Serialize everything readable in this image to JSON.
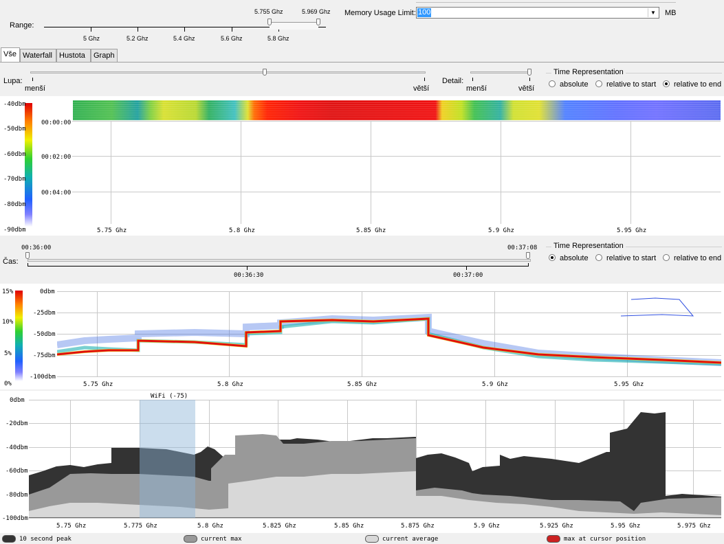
{
  "range": {
    "label": "Range:",
    "ticks": [
      "5 Ghz",
      "5.2 Ghz",
      "5.4 Ghz",
      "5.6 Ghz",
      "5.8 Ghz"
    ],
    "sel_low": "5.755 Ghz",
    "sel_high": "5.969 Ghz"
  },
  "memory": {
    "label": "Memory Usage Limit:",
    "value": "100",
    "unit": "MB"
  },
  "tabs": [
    {
      "label": "Vše",
      "active": true
    },
    {
      "label": "Waterfall",
      "active": false
    },
    {
      "label": "Hustota",
      "active": false
    },
    {
      "label": "Graph",
      "active": false
    }
  ],
  "zoom": {
    "lupa_label": "Lupa:",
    "lupa_min": "menší",
    "lupa_max": "větší",
    "detail_label": "Detail:",
    "detail_min": "menší",
    "detail_max": "větší"
  },
  "time_rep_top": {
    "title": "Time Representation",
    "options": [
      "absolute",
      "relative to start",
      "relative to end"
    ],
    "selected": 2
  },
  "waterfall": {
    "scale": [
      "-40dbm",
      "-50dbm",
      "-60dbm",
      "-70dbm",
      "-80dbm",
      "-90dbm"
    ],
    "times": [
      "00:00:00",
      "00:02:00",
      "00:04:00"
    ],
    "freqs": [
      "5.75 Ghz",
      "5.8 Ghz",
      "5.85 Ghz",
      "5.9 Ghz",
      "5.95 Ghz"
    ]
  },
  "cas": {
    "label": "Čas:",
    "start": "00:36:00",
    "end": "00:37:08",
    "ticks": [
      "00:36:30",
      "00:37:00"
    ]
  },
  "time_rep_mid": {
    "title": "Time Representation",
    "options": [
      "absolute",
      "relative to start",
      "relative to end"
    ],
    "selected": 0
  },
  "density": {
    "scale": [
      "15%",
      "10%",
      "5%",
      "0%"
    ],
    "dbm": [
      "0dbm",
      "-25dbm",
      "-50dbm",
      "-75dbm",
      "-100dbm"
    ],
    "freqs": [
      "5.75 Ghz",
      "5.8 Ghz",
      "5.85 Ghz",
      "5.9 Ghz",
      "5.95 Ghz"
    ]
  },
  "graph": {
    "dbm": [
      "0dbm",
      "-20dbm",
      "-40dbm",
      "-60dbm",
      "-80dbm",
      "-100dbm"
    ],
    "freqs": [
      "5.75 Ghz",
      "5.775 Ghz",
      "5.8 Ghz",
      "5.825 Ghz",
      "5.85 Ghz",
      "5.875 Ghz",
      "5.9 Ghz",
      "5.925 Ghz",
      "5.95 Ghz",
      "5.975 Ghz"
    ],
    "wifi_label": "WiFi (-75)"
  },
  "legend": [
    {
      "label": "10 second peak",
      "color": "#333333"
    },
    {
      "label": "current max",
      "color": "#999999"
    },
    {
      "label": "current average",
      "color": "#d8d8d8"
    },
    {
      "label": "max at cursor position",
      "color": "#cc2222"
    }
  ]
}
